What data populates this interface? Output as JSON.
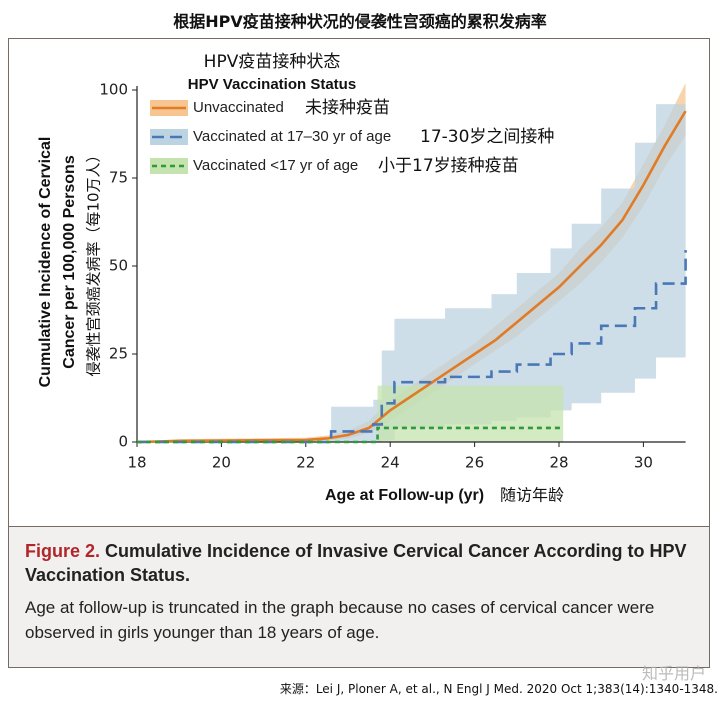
{
  "chart_data": {
    "type": "line",
    "title": "根据HPV疫苗接种状况的侵袭性宫颈癌的累积发病率",
    "legend_title_zh": "HPV疫苗接种状态",
    "legend_title": "HPV Vaccination Status",
    "x_label": "Age at Follow-up (yr)",
    "x_label_zh": "随访年龄",
    "y_label": [
      "Cumulative Incidence of Cervical",
      "Cancer per 100,000 Persons",
      "侵袭性宫颈癌发病率（每10万人）"
    ],
    "xlim": [
      18,
      31
    ],
    "ylim": [
      0,
      100
    ],
    "xticks": [
      18,
      20,
      22,
      24,
      26,
      28,
      30
    ],
    "yticks": [
      0,
      25,
      50,
      75,
      100
    ],
    "series": [
      {
        "name": "Unvaccinated",
        "name_zh": "未接种疫苗",
        "color": "#e07b27",
        "band_color": "#f6c592",
        "style": "solid",
        "step": false,
        "x": [
          18,
          19,
          22,
          22.5,
          23,
          23.5,
          24,
          24.5,
          25,
          25.5,
          26,
          26.5,
          27,
          27.5,
          28,
          28.5,
          29,
          29.5,
          30,
          30.5,
          31
        ],
        "values": [
          0,
          0.3,
          0.6,
          1,
          2,
          4,
          9,
          13,
          17,
          21,
          25,
          29,
          34,
          39,
          44,
          50,
          56,
          63,
          73,
          84,
          94
        ],
        "ci_low": [
          0,
          0,
          0.2,
          0.4,
          1,
          2.5,
          6,
          10,
          14,
          18,
          22,
          26,
          30,
          35,
          40,
          45,
          51,
          58,
          67,
          78,
          87
        ],
        "ci_high": [
          0,
          0.8,
          1.2,
          1.8,
          3.2,
          6,
          12,
          16,
          20,
          24,
          28,
          33,
          38,
          43,
          48,
          55,
          61,
          68,
          79,
          90,
          102
        ]
      },
      {
        "name": "Vaccinated at 17–30 yr of age",
        "name_zh": "17-30岁之间接种",
        "color": "#4a78b6",
        "band_color": "#bcd3e2",
        "style": "dashed",
        "step": true,
        "x": [
          18,
          22.6,
          23.6,
          23.8,
          24.1,
          25.3,
          26.4,
          27,
          27.8,
          28.3,
          29,
          29.8,
          30.3,
          31
        ],
        "values": [
          0,
          3,
          5,
          11,
          17,
          18.5,
          20,
          22,
          25,
          28,
          33,
          38,
          45,
          54.5
        ],
        "ci_low": [
          0,
          0,
          0,
          0.5,
          4,
          5,
          6,
          7,
          9,
          11,
          14,
          18,
          24,
          31
        ],
        "ci_high": [
          0,
          10,
          12,
          26,
          35,
          38,
          42,
          48,
          55,
          62,
          72,
          85,
          96,
          96
        ]
      },
      {
        "name": "Vaccinated <17 yr of age",
        "name_zh": "小于17岁接种疫苗",
        "color": "#2e9a3a",
        "band_color": "#c4e3ae",
        "style": "dotted",
        "step": true,
        "x": [
          18,
          23.7,
          28.1
        ],
        "values": [
          0,
          4,
          4
        ],
        "ci_low": [
          0,
          0,
          0
        ],
        "ci_high": [
          0,
          16,
          16
        ]
      }
    ]
  },
  "caption": {
    "label": "Figure 2.",
    "title": "Cumulative Incidence of Invasive Cervical Cancer According to HPV Vaccination Status.",
    "text": "Age at follow-up is truncated in the graph because no cases of cervical cancer were observed in girls younger than 18 years of age."
  },
  "source": "来源：Lei J, Ploner A, et al., N Engl J Med. 2020 Oct 1;383(14):1340-1348.",
  "watermark": "知乎用户"
}
